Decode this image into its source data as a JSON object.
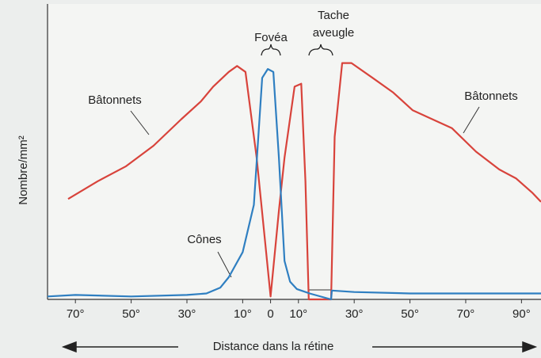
{
  "chart_data": {
    "type": "line",
    "x_label": "Distance dans la rétine",
    "y_label": "Nombre/mm²",
    "fovea_label": "Fovéa",
    "blind_spot_label": [
      "Tache",
      "aveugle"
    ],
    "xlim": [
      -80,
      97
    ],
    "ylim": [
      0,
      100
    ],
    "xticks": [
      {
        "value": -70,
        "label": "70°"
      },
      {
        "value": -50,
        "label": "50°"
      },
      {
        "value": -30,
        "label": "30°"
      },
      {
        "value": -10,
        "label": "10°"
      },
      0,
      {
        "value": 10,
        "label": "10°"
      },
      {
        "value": 30,
        "label": "30°"
      },
      {
        "value": 50,
        "label": "50°"
      },
      {
        "value": 70,
        "label": "70°"
      },
      {
        "value": 90,
        "label": "90°"
      }
    ],
    "series": [
      {
        "name": "Bâtonnets",
        "color": "#d8433b",
        "x": [
          -72.6,
          -62,
          -52,
          -42,
          -32,
          -25,
          -20.6,
          -15,
          -12,
          -9,
          -5,
          -2,
          0,
          3,
          5,
          8.6,
          11,
          12.5,
          13.7,
          21.7,
          23,
          25.7,
          29,
          36.6,
          44,
          51,
          58,
          65,
          73.7,
          82,
          88,
          94,
          97
        ],
        "values": [
          34,
          40,
          45,
          52,
          61,
          67,
          72,
          77,
          79,
          77,
          48,
          20,
          1,
          30,
          48,
          72,
          73,
          40,
          0,
          0,
          55,
          80,
          80,
          75,
          70,
          64,
          61,
          58,
          50,
          44,
          41,
          36,
          33
        ]
      },
      {
        "name": "Cônes",
        "color": "#2f7fc1",
        "x": [
          -80,
          -70,
          -50,
          -30,
          -23,
          -18,
          -15,
          -10,
          -6,
          -3,
          -1,
          1,
          3,
          5,
          7,
          9.4,
          14,
          21.7,
          22,
          30,
          50,
          70,
          90,
          97
        ],
        "values": [
          1,
          1.5,
          1,
          1.5,
          2,
          4,
          7.5,
          16,
          32,
          75,
          78,
          77,
          48,
          13,
          6,
          3.5,
          2,
          0,
          3,
          2.5,
          2,
          2,
          2,
          2
        ]
      }
    ]
  }
}
